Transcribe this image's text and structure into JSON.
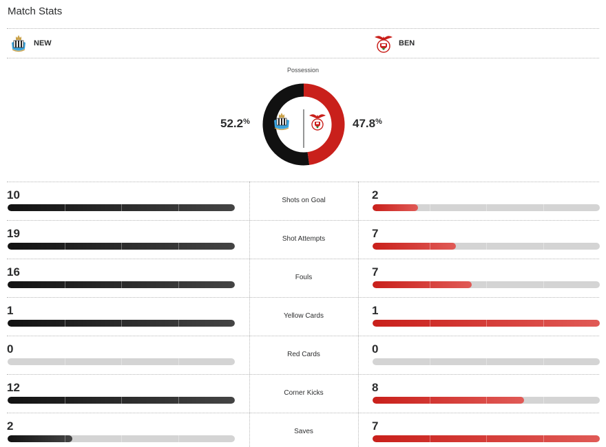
{
  "header": {
    "title": "Match Stats"
  },
  "teams": {
    "home": {
      "abbr": "NEW",
      "color": "#111111",
      "logo_icon": "newcastle-crest-icon"
    },
    "away": {
      "abbr": "BEN",
      "color": "#c9201b",
      "logo_icon": "benfica-crest-icon"
    }
  },
  "possession": {
    "label": "Possession",
    "home_value": "52.2",
    "away_value": "47.8",
    "unit": "%",
    "home_pct": 52.2,
    "away_pct": 47.8
  },
  "stats": [
    {
      "label": "Shots on Goal",
      "home": "10",
      "away": "2",
      "home_fill": 1.0,
      "away_fill": 0.2
    },
    {
      "label": "Shot Attempts",
      "home": "19",
      "away": "7",
      "home_fill": 1.0,
      "away_fill": 0.368
    },
    {
      "label": "Fouls",
      "home": "16",
      "away": "7",
      "home_fill": 1.0,
      "away_fill": 0.4375
    },
    {
      "label": "Yellow Cards",
      "home": "1",
      "away": "1",
      "home_fill": 1.0,
      "away_fill": 1.0
    },
    {
      "label": "Red Cards",
      "home": "0",
      "away": "0",
      "home_fill": 0.0,
      "away_fill": 0.0
    },
    {
      "label": "Corner Kicks",
      "home": "12",
      "away": "8",
      "home_fill": 1.0,
      "away_fill": 0.667
    },
    {
      "label": "Saves",
      "home": "2",
      "away": "7",
      "home_fill": 0.286,
      "away_fill": 1.0
    }
  ]
}
